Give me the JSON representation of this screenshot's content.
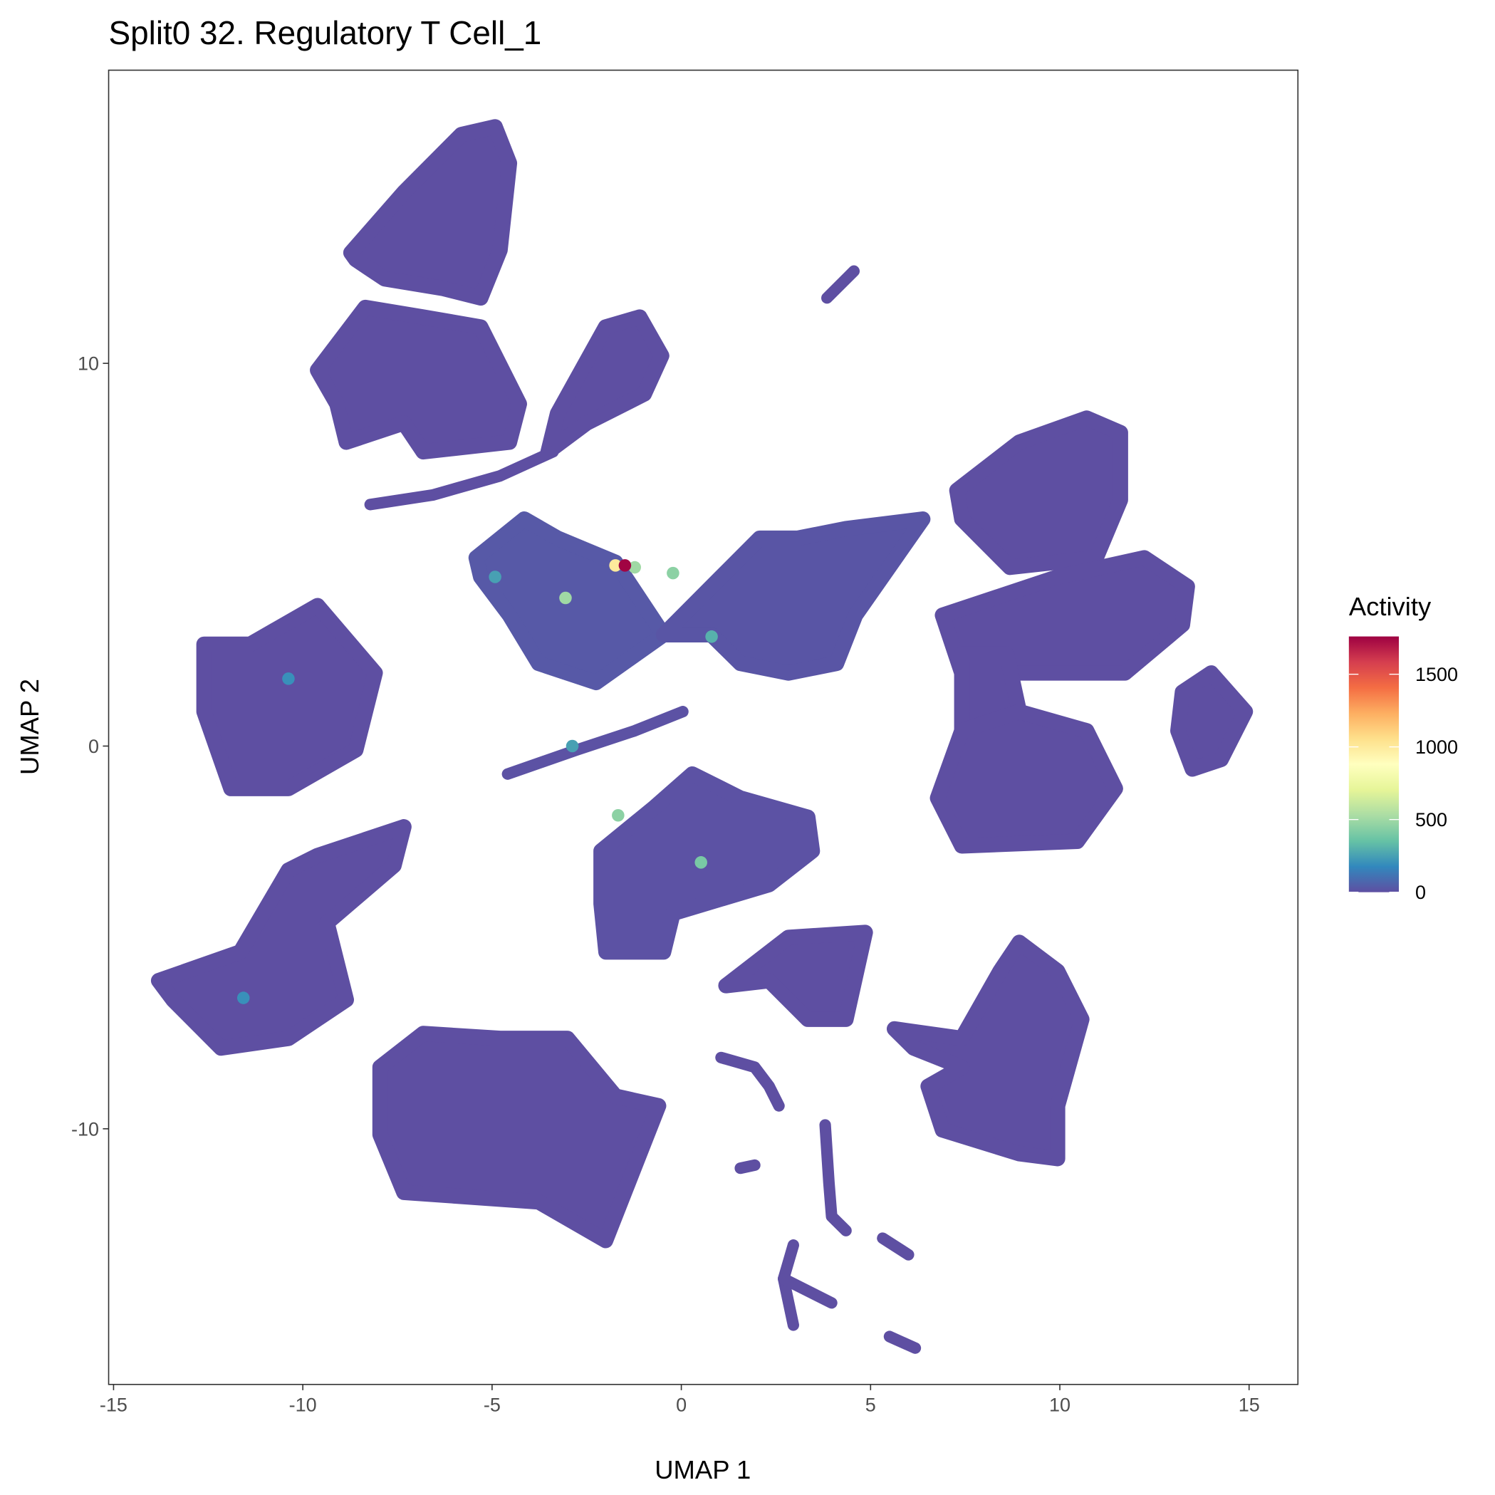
{
  "chart_data": {
    "type": "scatter",
    "title": "Split0 32. Regulatory T Cell_1",
    "xlabel": "UMAP 1",
    "ylabel": "UMAP 2",
    "xlim": [
      -15.13,
      16.29
    ],
    "ylim": [
      -16.68,
      17.66
    ],
    "xticks": [
      -15,
      -10,
      -5,
      0,
      5,
      10,
      15
    ],
    "xtick_labels": [
      "-15",
      "-10",
      "-5",
      "0",
      "5",
      "10",
      "15"
    ],
    "yticks": [
      -10,
      0,
      10
    ],
    "ytick_labels": [
      "-10",
      "0",
      "10"
    ],
    "grid": false,
    "legend": {
      "title": "Activity",
      "position": "right",
      "type": "colorbar",
      "range": [
        0,
        1760
      ],
      "ticks": [
        0,
        500,
        1000,
        1500
      ],
      "tick_labels": [
        "0",
        "500",
        "1000",
        "1500"
      ],
      "palette": [
        "#5E4FA2",
        "#3288BD",
        "#66C2A5",
        "#ABDDA4",
        "#E6F598",
        "#FFFFBF",
        "#FEE08B",
        "#FDAE61",
        "#F46D43",
        "#D53E4F",
        "#9E0142"
      ]
    },
    "base_color": "#5E4FA2",
    "clusters": [
      {
        "activity": 0,
        "shape": "region",
        "points": [
          [
            -8.73,
            12.89
          ],
          [
            -7.33,
            14.47
          ],
          [
            -5.81,
            15.98
          ],
          [
            -4.92,
            16.18
          ],
          [
            -4.54,
            15.23
          ],
          [
            -4.79,
            12.96
          ],
          [
            -5.3,
            11.71
          ],
          [
            -6.31,
            11.96
          ],
          [
            -7.84,
            12.21
          ],
          [
            -8.6,
            12.71
          ]
        ]
      },
      {
        "activity": 0,
        "shape": "region",
        "points": [
          [
            -9.61,
            9.82
          ],
          [
            -8.35,
            11.46
          ],
          [
            -6.82,
            11.21
          ],
          [
            -5.3,
            10.95
          ],
          [
            -4.28,
            8.94
          ],
          [
            -4.54,
            7.94
          ],
          [
            -6.82,
            7.69
          ],
          [
            -7.33,
            8.44
          ],
          [
            -8.85,
            7.94
          ],
          [
            -9.1,
            8.94
          ]
        ]
      },
      {
        "activity": 0,
        "shape": "region",
        "points": [
          [
            -2,
            10.95
          ],
          [
            -1.1,
            11.21
          ],
          [
            -0.52,
            10.2
          ],
          [
            -0.98,
            9.2
          ],
          [
            -2.5,
            8.44
          ],
          [
            -3.52,
            7.69
          ],
          [
            -3.27,
            8.69
          ]
        ]
      },
      {
        "activity": 0,
        "shape": "strand",
        "points": [
          [
            -8.22,
            6.31
          ],
          [
            -6.57,
            6.56
          ],
          [
            -4.79,
            7.06
          ],
          [
            -3.39,
            7.69
          ]
        ]
      },
      {
        "activity": 0,
        "shape": "strand",
        "points": [
          [
            3.85,
            11.71
          ],
          [
            4.56,
            12.41
          ]
        ]
      },
      {
        "activity": 30,
        "shape": "region",
        "points": [
          [
            -5.42,
            4.92
          ],
          [
            -4.15,
            5.93
          ],
          [
            -3.27,
            5.43
          ],
          [
            -1.74,
            4.8
          ],
          [
            -0.47,
            2.91
          ],
          [
            -2.25,
            1.66
          ],
          [
            -3.77,
            2.16
          ],
          [
            -4.54,
            3.42
          ],
          [
            -5.3,
            4.42
          ]
        ]
      },
      {
        "activity": 20,
        "shape": "region",
        "points": [
          [
            -0.47,
            2.91
          ],
          [
            1.05,
            4.42
          ],
          [
            2.07,
            5.43
          ],
          [
            3.08,
            5.43
          ],
          [
            4.35,
            5.68
          ],
          [
            6.38,
            5.93
          ],
          [
            4.6,
            3.42
          ],
          [
            4.1,
            2.16
          ],
          [
            2.83,
            1.91
          ],
          [
            1.56,
            2.16
          ],
          [
            0.79,
            2.91
          ]
        ]
      },
      {
        "activity": 0,
        "shape": "region",
        "points": [
          [
            7.28,
            6.68
          ],
          [
            8.93,
            7.94
          ],
          [
            10.71,
            8.57
          ],
          [
            11.6,
            8.19
          ],
          [
            11.6,
            6.43
          ],
          [
            10.96,
            4.92
          ],
          [
            8.68,
            4.67
          ],
          [
            7.41,
            5.93
          ]
        ]
      },
      {
        "activity": 0,
        "shape": "region",
        "points": [
          [
            6.9,
            3.42
          ],
          [
            9.94,
            4.42
          ],
          [
            12.23,
            4.92
          ],
          [
            13.37,
            4.17
          ],
          [
            13.24,
            3.17
          ],
          [
            11.72,
            1.91
          ],
          [
            7.41,
            1.91
          ]
        ]
      },
      {
        "activity": 0,
        "shape": "region",
        "points": [
          [
            7.41,
            2.4
          ],
          [
            8.6,
            2.4
          ],
          [
            8.93,
            0.9
          ],
          [
            7.41,
            0.4
          ]
        ]
      },
      {
        "activity": 0,
        "shape": "region",
        "points": [
          [
            6.77,
            -1.36
          ],
          [
            7.41,
            0.4
          ],
          [
            8.93,
            0.9
          ],
          [
            10.71,
            0.4
          ],
          [
            11.47,
            -1.11
          ],
          [
            10.46,
            -2.49
          ],
          [
            7.41,
            -2.61
          ]
        ]
      },
      {
        "activity": 0,
        "shape": "region",
        "points": [
          [
            13.24,
            1.41
          ],
          [
            14,
            1.91
          ],
          [
            14.9,
            0.9
          ],
          [
            14.26,
            -0.35
          ],
          [
            13.5,
            -0.6
          ],
          [
            13.12,
            0.4
          ]
        ]
      },
      {
        "activity": 0,
        "shape": "region",
        "points": [
          [
            -12.61,
            2.66
          ],
          [
            -11.39,
            2.66
          ],
          [
            -9.61,
            3.67
          ],
          [
            -8.09,
            1.91
          ],
          [
            -8.6,
            -0.1
          ],
          [
            -10.38,
            -1.11
          ],
          [
            -11.9,
            -1.11
          ],
          [
            -12.61,
            0.9
          ]
        ]
      },
      {
        "activity": 0,
        "shape": "region",
        "points": [
          [
            -13.81,
            -6.13
          ],
          [
            -11.65,
            -5.38
          ],
          [
            -10.38,
            -3.24
          ],
          [
            -9.61,
            -2.86
          ],
          [
            -7.33,
            -2.11
          ],
          [
            -7.59,
            -3.12
          ],
          [
            -9.36,
            -4.62
          ],
          [
            -8.85,
            -6.63
          ],
          [
            -10.38,
            -7.64
          ],
          [
            -12.16,
            -7.89
          ],
          [
            -13.43,
            -6.63
          ]
        ]
      },
      {
        "activity": 0,
        "shape": "region",
        "points": [
          [
            -7.96,
            -8.39
          ],
          [
            -6.82,
            -7.51
          ],
          [
            -4.79,
            -7.64
          ],
          [
            -3.01,
            -7.64
          ],
          [
            -1.74,
            -9.15
          ],
          [
            -0.6,
            -9.4
          ],
          [
            -2,
            -12.92
          ],
          [
            -3.77,
            -11.91
          ],
          [
            -7.33,
            -11.66
          ],
          [
            -7.96,
            -10.15
          ]
        ]
      },
      {
        "activity": 10,
        "shape": "region",
        "points": [
          [
            -2.12,
            -2.74
          ],
          [
            -0.72,
            -1.61
          ],
          [
            0.29,
            -0.73
          ],
          [
            1.56,
            -1.36
          ],
          [
            3.34,
            -1.86
          ],
          [
            3.46,
            -2.74
          ],
          [
            2.32,
            -3.62
          ],
          [
            -0.22,
            -4.37
          ],
          [
            -0.47,
            -5.38
          ],
          [
            -1.99,
            -5.38
          ],
          [
            -2.12,
            -4.12
          ]
        ]
      },
      {
        "activity": 10,
        "shape": "strand",
        "points": [
          [
            -4.59,
            -0.73
          ],
          [
            -2.76,
            -0.1
          ],
          [
            -1.23,
            0.4
          ],
          [
            0.04,
            0.9
          ]
        ]
      },
      {
        "activity": 0,
        "shape": "region",
        "points": [
          [
            1.18,
            -6.26
          ],
          [
            2.83,
            -5
          ],
          [
            4.86,
            -4.87
          ],
          [
            4.35,
            -7.14
          ],
          [
            3.34,
            -7.14
          ],
          [
            2.32,
            -6.13
          ]
        ]
      },
      {
        "activity": 0,
        "shape": "region",
        "points": [
          [
            5.63,
            -7.39
          ],
          [
            7.41,
            -7.64
          ],
          [
            8.42,
            -5.88
          ],
          [
            8.93,
            -5.13
          ],
          [
            9.94,
            -5.88
          ],
          [
            10.58,
            -7.14
          ],
          [
            9.94,
            -9.4
          ],
          [
            9.94,
            -10.78
          ],
          [
            8.93,
            -10.65
          ],
          [
            6.9,
            -10.03
          ],
          [
            6.52,
            -8.89
          ],
          [
            7.41,
            -8.39
          ],
          [
            6.14,
            -7.89
          ]
        ]
      },
      {
        "activity": 0,
        "shape": "strand",
        "points": [
          [
            1.05,
            -8.14
          ],
          [
            1.94,
            -8.39
          ],
          [
            2.32,
            -8.89
          ],
          [
            2.58,
            -9.4
          ]
        ]
      },
      {
        "activity": 0,
        "shape": "strand",
        "points": [
          [
            1.56,
            -11.03
          ],
          [
            1.94,
            -10.95
          ]
        ]
      },
      {
        "activity": 0,
        "shape": "strand",
        "points": [
          [
            3.8,
            -9.9
          ],
          [
            3.9,
            -11.41
          ],
          [
            3.97,
            -12.29
          ],
          [
            4.35,
            -12.66
          ]
        ]
      },
      {
        "activity": 0,
        "shape": "strand",
        "points": [
          [
            2.96,
            -13.04
          ],
          [
            2.7,
            -13.92
          ],
          [
            2.96,
            -15.13
          ]
        ]
      },
      {
        "activity": 0,
        "shape": "strand",
        "points": [
          [
            2.7,
            -13.92
          ],
          [
            3.97,
            -14.55
          ]
        ]
      },
      {
        "activity": 0,
        "shape": "strand",
        "points": [
          [
            5.32,
            -12.86
          ],
          [
            6,
            -13.29
          ]
        ]
      },
      {
        "activity": 0,
        "shape": "strand",
        "points": [
          [
            5.5,
            -15.43
          ],
          [
            6.18,
            -15.73
          ]
        ]
      }
    ],
    "highlighted_points": [
      {
        "x": -10.38,
        "y": 1.76,
        "activity": 200
      },
      {
        "x": -11.57,
        "y": -6.58,
        "activity": 200
      },
      {
        "x": -4.92,
        "y": 4.42,
        "activity": 250
      },
      {
        "x": -2.88,
        "y": 0.0,
        "activity": 250
      },
      {
        "x": 0.8,
        "y": 2.86,
        "activity": 300
      },
      {
        "x": 0.52,
        "y": -3.04,
        "activity": 400
      },
      {
        "x": -1.67,
        "y": -1.81,
        "activity": 450
      },
      {
        "x": -0.22,
        "y": 4.52,
        "activity": 450
      },
      {
        "x": -3.06,
        "y": 3.87,
        "activity": 500
      },
      {
        "x": -1.23,
        "y": 4.67,
        "activity": 500
      },
      {
        "x": -1.74,
        "y": 4.72,
        "activity": 1000
      },
      {
        "x": -1.49,
        "y": 4.72,
        "activity": 1750
      }
    ]
  }
}
